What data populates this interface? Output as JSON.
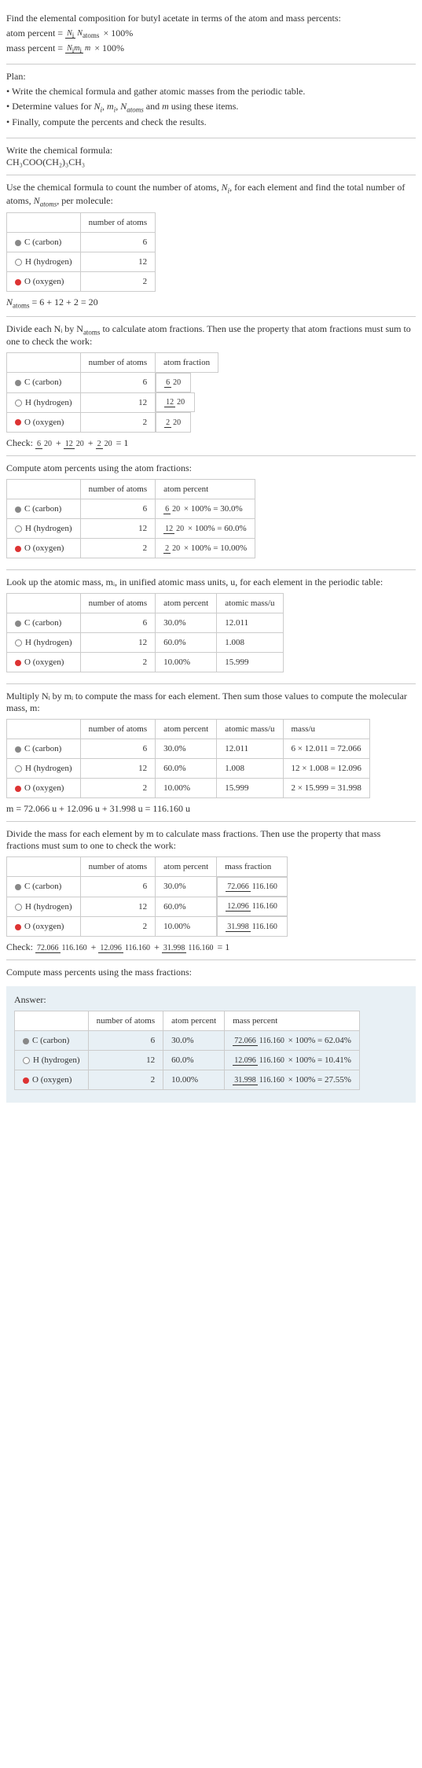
{
  "intro": {
    "line1": "Find the elemental composition for butyl acetate in terms of the atom and mass percents:",
    "ap_label": "atom percent = ",
    "ap_num": "N",
    "ap_num_sub": "i",
    "ap_den": "N",
    "ap_den_sub": "atoms",
    "mp_label": "mass percent = ",
    "mp_num1": "N",
    "mp_num1_sub": "i",
    "mp_num2": "m",
    "mp_num2_sub": "i",
    "mp_den": "m",
    "times100": " × 100%"
  },
  "plan": {
    "title": "Plan:",
    "b1": "• Write the chemical formula and gather atomic masses from the periodic table.",
    "b2_a": "• Determine values for ",
    "b2_b": " using these items.",
    "b3": "• Finally, compute the percents and check the results."
  },
  "formula": {
    "title": "Write the chemical formula:",
    "text": "CH₃COO(CH₂)₃CH₃"
  },
  "count": {
    "intro_a": "Use the chemical formula to count the number of atoms, ",
    "intro_b": ", for each element and find the total number of atoms, ",
    "intro_c": ", per molecule:",
    "h1": "",
    "h2": "number of atoms",
    "c_name": "C (carbon)",
    "c_n": "6",
    "h_name": "H (hydrogen)",
    "h_n": "12",
    "o_name": "O (oxygen)",
    "o_n": "2",
    "total_a": "N",
    "total_sub": "atoms",
    "total_eq": " = 6 + 12 + 2 = 20"
  },
  "atomfrac": {
    "intro": "Divide each Nᵢ by N",
    "intro_sub": "atoms",
    "intro2": " to calculate atom fractions. Then use the property that atom fractions must sum to one to check the work:",
    "h2": "number of atoms",
    "h3": "atom fraction",
    "c_f_n": "6",
    "c_f_d": "20",
    "h_f_n": "12",
    "h_f_d": "20",
    "o_f_n": "2",
    "o_f_d": "20",
    "check_label": "Check: ",
    "check_eq": " = 1"
  },
  "atompct": {
    "intro": "Compute atom percents using the atom fractions:",
    "h2": "number of atoms",
    "h3": "atom percent",
    "c_pct": " × 100% = 30.0%",
    "h_pct": " × 100% = 60.0%",
    "o_pct": " × 100% = 10.00%"
  },
  "mass": {
    "intro": "Look up the atomic mass, mᵢ, in unified atomic mass units, u, for each element in the periodic table:",
    "h2": "number of atoms",
    "h3": "atom percent",
    "h4": "atomic mass/u",
    "c_pct": "30.0%",
    "c_m": "12.011",
    "h_pct": "60.0%",
    "h_m": "1.008",
    "o_pct": "10.00%",
    "o_m": "15.999"
  },
  "mult": {
    "intro": "Multiply Nᵢ by mᵢ to compute the mass for each element. Then sum those values to compute the molecular mass, m:",
    "h5": "mass/u",
    "c_mass": "6 × 12.011 = 72.066",
    "h_mass": "12 × 1.008 = 12.096",
    "o_mass": "2 × 15.999 = 31.998",
    "total": "m = 72.066 u + 12.096 u + 31.998 u = 116.160 u"
  },
  "massfrac": {
    "intro": "Divide the mass for each element by m to calculate mass fractions. Then use the property that mass fractions must sum to one to check the work:",
    "h4": "mass fraction",
    "c_n": "72.066",
    "d": "116.160",
    "h_n": "12.096",
    "o_n": "31.998",
    "check_label": "Check: ",
    "check_eq": " = 1"
  },
  "masspct": {
    "intro": "Compute mass percents using the mass fractions:"
  },
  "answer": {
    "label": "Answer:",
    "h2": "number of atoms",
    "h3": "atom percent",
    "h4": "mass percent",
    "c_res": " × 100% = 62.04%",
    "h_res": " × 100% = 10.41%",
    "o_res": " × 100% = 27.55%"
  },
  "colors": {
    "c": "#888888",
    "h": "#ffffff",
    "o": "#dd3333",
    "answer_bg": "#e8f0f5"
  }
}
